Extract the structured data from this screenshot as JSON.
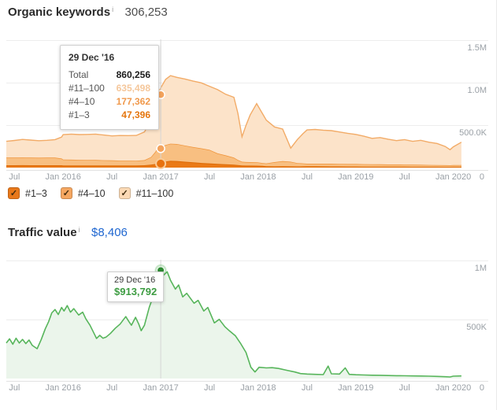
{
  "icons": {
    "check": "✓",
    "info": "i"
  },
  "colors": {
    "rank_1_3": "#ea7a17",
    "rank_4_10": "#f8bf81",
    "rank_11_100": "#fce3c9",
    "green_line": "#57b55b",
    "blue_link": "#1e66d0",
    "axis_text": "#9aa0a6"
  },
  "organic_section": {
    "title": "Organic keywords",
    "info": "i",
    "value": "306,253",
    "tooltip": {
      "date": "29 Dec '16",
      "rows": [
        {
          "label": "Total",
          "value": "860,256"
        },
        {
          "label": "#11–100",
          "value": "635,498"
        },
        {
          "label": "#4–10",
          "value": "177,362"
        },
        {
          "label": "#1–3",
          "value": "47,396"
        }
      ]
    },
    "legend": [
      {
        "label": "#1–3",
        "color": "#e8781a"
      },
      {
        "label": "#4–10",
        "color": "#f5a761"
      },
      {
        "label": "#11–100",
        "color": "#fbd9b5"
      }
    ]
  },
  "traffic_section": {
    "title": "Traffic value",
    "info": "i",
    "value": "$8,406",
    "tooltip": {
      "date": "29 Dec '16",
      "value": "$913,792"
    }
  },
  "chart_data": [
    {
      "id": "organic-keywords",
      "type": "area",
      "stacked": true,
      "title": "Organic keywords over time",
      "x_unit": "months since Jun 2015",
      "values_unit": "thousands of keywords",
      "xlim": [
        0,
        56.2
      ],
      "ylim": [
        0,
        1550000
      ],
      "grid": true,
      "x_ticks": [
        {
          "pos": 1,
          "label": "Jul"
        },
        {
          "pos": 7,
          "label": "Jan 2016"
        },
        {
          "pos": 13,
          "label": "Jul"
        },
        {
          "pos": 19,
          "label": "Jan 2017"
        },
        {
          "pos": 25,
          "label": "Jul"
        },
        {
          "pos": 31,
          "label": "Jan 2018"
        },
        {
          "pos": 37,
          "label": "Jul"
        },
        {
          "pos": 43,
          "label": "Jan 2019"
        },
        {
          "pos": 49,
          "label": "Jul"
        },
        {
          "pos": 55,
          "label": "Jan 2020"
        }
      ],
      "y_grid": [
        {
          "value": 1500000,
          "label": "1.5M"
        },
        {
          "value": 1000000,
          "label": "1.0M"
        },
        {
          "value": 500000,
          "label": "500.0K"
        },
        {
          "value": 0,
          "label": "0"
        }
      ],
      "x": [
        0,
        1,
        2,
        3,
        4,
        5,
        6,
        6.8,
        7,
        8,
        9,
        10,
        11,
        12,
        13,
        14,
        15,
        16,
        17,
        17.8,
        18.3,
        18.6,
        19,
        19.6,
        20.2,
        21,
        22,
        23,
        24,
        25,
        26,
        27,
        28,
        28.5,
        29,
        29.5,
        30,
        30.8,
        31.5,
        32,
        33,
        34,
        35,
        35.8,
        36.5,
        37,
        38,
        39,
        40,
        41,
        42,
        43,
        44,
        45,
        46,
        47,
        48,
        49,
        50,
        51,
        52,
        53,
        54,
        54.6,
        55,
        56
      ],
      "series": [
        {
          "name": "#1–3",
          "fill": "#ea7a17",
          "stroke": "#dd6a05",
          "stroke_w": 2,
          "values_k": [
            28,
            28,
            29,
            28,
            28,
            28,
            28,
            28,
            26,
            26,
            26,
            26,
            26,
            25,
            25,
            25,
            26,
            26,
            28,
            34,
            42,
            47.4,
            58,
            72,
            80,
            78,
            70,
            62,
            55,
            50,
            45,
            40,
            35,
            30,
            25,
            24,
            24,
            23,
            20,
            17,
            15,
            16,
            15,
            14,
            15,
            16,
            16,
            15,
            14,
            14,
            13,
            13,
            12,
            12,
            12,
            11,
            11,
            11,
            10,
            10,
            10,
            10,
            9,
            9,
            10,
            10
          ]
        },
        {
          "name": "#4–10",
          "fill": "#f8bf81",
          "stroke": "#ef9338",
          "stroke_w": 1.4,
          "values_k": [
            90,
            90,
            91,
            90,
            89,
            90,
            90,
            80,
            70,
            68,
            66,
            65,
            64,
            62,
            60,
            58,
            57,
            56,
            60,
            90,
            140,
            177.4,
            182,
            195,
            202,
            200,
            190,
            180,
            172,
            160,
            123,
            105,
            83,
            60,
            45,
            42,
            41,
            41,
            35,
            33,
            50,
            60,
            55,
            40,
            35,
            30,
            30,
            31,
            32,
            31,
            30,
            30,
            29,
            28,
            27,
            26,
            26,
            25,
            24,
            23,
            22,
            21,
            20,
            19,
            20,
            21
          ]
        },
        {
          "name": "#11–100",
          "fill": "#fce3c9",
          "stroke": "#f2ab67",
          "stroke_w": 1.4,
          "values_k": [
            192,
            202,
            212,
            207,
            200,
            204,
            212,
            252,
            294,
            301,
            298,
            301,
            305,
            297,
            289,
            296,
            295,
            298,
            332,
            436,
            538,
            635.5,
            700,
            773,
            803,
            787,
            785,
            778,
            773,
            750,
            752,
            720,
            712,
            550,
            294,
            433,
            555,
            691,
            585,
            510,
            415,
            379,
            160,
            276,
            350,
            399,
            404,
            396,
            390,
            375,
            362,
            349,
            329,
            305,
            316,
            298,
            281,
            294,
            276,
            289,
            268,
            254,
            221,
            184,
            215,
            269
          ]
        }
      ],
      "crosshair": {
        "pos": 19,
        "markers": [
          {
            "value_k": 860.3,
            "r": 5,
            "fill": "#f4a35d",
            "stroke": "#ffffff",
            "sw": 1.5
          },
          {
            "value_k": 224.8,
            "r": 5,
            "fill": "#f4a35d",
            "stroke": "#ffffff",
            "sw": 1.5
          },
          {
            "value_k": 47.4,
            "r": 6,
            "fill": "#e8720e",
            "stroke": "#f9cb97",
            "sw": 2
          }
        ]
      }
    },
    {
      "id": "traffic-value",
      "type": "line",
      "title": "Traffic value over time",
      "x_unit": "months since Jun 2015",
      "values_unit": "USD thousands",
      "xlim": [
        0,
        56.2
      ],
      "ylim": [
        0,
        1030000
      ],
      "grid": true,
      "stroke": "#57b55b",
      "stroke_w": 1.6,
      "fill": "#ebf5eb",
      "x_ticks": [
        {
          "pos": 1,
          "label": "Jul"
        },
        {
          "pos": 7,
          "label": "Jan 2016"
        },
        {
          "pos": 13,
          "label": "Jul"
        },
        {
          "pos": 19,
          "label": "Jan 2017"
        },
        {
          "pos": 25,
          "label": "Jul"
        },
        {
          "pos": 31,
          "label": "Jan 2018"
        },
        {
          "pos": 37,
          "label": "Jul"
        },
        {
          "pos": 43,
          "label": "Jan 2019"
        },
        {
          "pos": 49,
          "label": "Jul"
        },
        {
          "pos": 55,
          "label": "Jan 2020"
        }
      ],
      "y_grid": [
        {
          "value": 1000000,
          "label": "1M"
        },
        {
          "value": 500000,
          "label": "500K"
        },
        {
          "value": 0,
          "label": "0"
        }
      ],
      "points_k": [
        [
          0,
          300
        ],
        [
          0.4,
          335
        ],
        [
          0.8,
          290
        ],
        [
          1.2,
          340
        ],
        [
          1.6,
          300
        ],
        [
          2,
          330
        ],
        [
          2.4,
          295
        ],
        [
          2.8,
          325
        ],
        [
          3.2,
          280
        ],
        [
          3.8,
          252
        ],
        [
          4.3,
          330
        ],
        [
          4.8,
          420
        ],
        [
          5.2,
          480
        ],
        [
          5.6,
          555
        ],
        [
          6,
          583
        ],
        [
          6.4,
          540
        ],
        [
          6.8,
          600
        ],
        [
          7.1,
          570
        ],
        [
          7.5,
          616
        ],
        [
          7.9,
          560
        ],
        [
          8.3,
          590
        ],
        [
          8.9,
          536
        ],
        [
          9.4,
          560
        ],
        [
          9.8,
          503
        ],
        [
          10.3,
          450
        ],
        [
          10.8,
          380
        ],
        [
          11.1,
          338
        ],
        [
          11.5,
          365
        ],
        [
          11.9,
          340
        ],
        [
          12.3,
          351
        ],
        [
          12.8,
          380
        ],
        [
          13.4,
          424
        ],
        [
          14,
          460
        ],
        [
          14.7,
          523
        ],
        [
          15.1,
          480
        ],
        [
          15.4,
          450
        ],
        [
          15.9,
          517
        ],
        [
          16.3,
          460
        ],
        [
          16.6,
          404
        ],
        [
          17,
          450
        ],
        [
          17.6,
          603
        ],
        [
          18,
          680
        ],
        [
          18.3,
          790
        ],
        [
          18.5,
          854
        ],
        [
          18.7,
          820
        ],
        [
          19,
          914
        ],
        [
          19.3,
          870
        ],
        [
          19.8,
          901
        ],
        [
          20.2,
          830
        ],
        [
          20.8,
          755
        ],
        [
          21.2,
          790
        ],
        [
          21.7,
          689
        ],
        [
          22.2,
          720
        ],
        [
          23.1,
          636
        ],
        [
          23.6,
          660
        ],
        [
          24.3,
          570
        ],
        [
          24.8,
          600
        ],
        [
          25.6,
          470
        ],
        [
          26.2,
          500
        ],
        [
          26.9,
          437
        ],
        [
          27.5,
          400
        ],
        [
          28.2,
          360
        ],
        [
          28.8,
          300
        ],
        [
          29.5,
          220
        ],
        [
          30.1,
          95
        ],
        [
          30.6,
          55
        ],
        [
          31.1,
          95
        ],
        [
          32,
          90
        ],
        [
          32.7,
          92
        ],
        [
          33.5,
          85
        ],
        [
          34.5,
          70
        ],
        [
          35.5,
          55
        ],
        [
          36.2,
          42
        ],
        [
          37,
          38
        ],
        [
          38,
          35
        ],
        [
          39,
          33
        ],
        [
          39.6,
          105
        ],
        [
          40,
          40
        ],
        [
          41,
          38
        ],
        [
          41.7,
          90
        ],
        [
          42.2,
          35
        ],
        [
          43,
          32
        ],
        [
          44,
          30
        ],
        [
          45,
          28
        ],
        [
          46,
          27
        ],
        [
          47,
          25
        ],
        [
          48,
          24
        ],
        [
          49,
          23
        ],
        [
          50,
          22
        ],
        [
          51,
          21
        ],
        [
          52,
          20
        ],
        [
          53,
          18
        ],
        [
          54,
          15
        ],
        [
          54.6,
          13
        ],
        [
          55,
          20
        ],
        [
          56,
          22
        ]
      ],
      "crosshair": {
        "pos": 19,
        "markers": [
          {
            "value_k": 913.8,
            "r": 7.5,
            "fill": "rgba(98,182,101,0.35)",
            "stroke": "none",
            "sw": 0
          },
          {
            "value_k": 913.8,
            "r": 4.5,
            "fill": "#2e8b33",
            "stroke": "#ffffff",
            "sw": 1
          }
        ]
      }
    }
  ]
}
